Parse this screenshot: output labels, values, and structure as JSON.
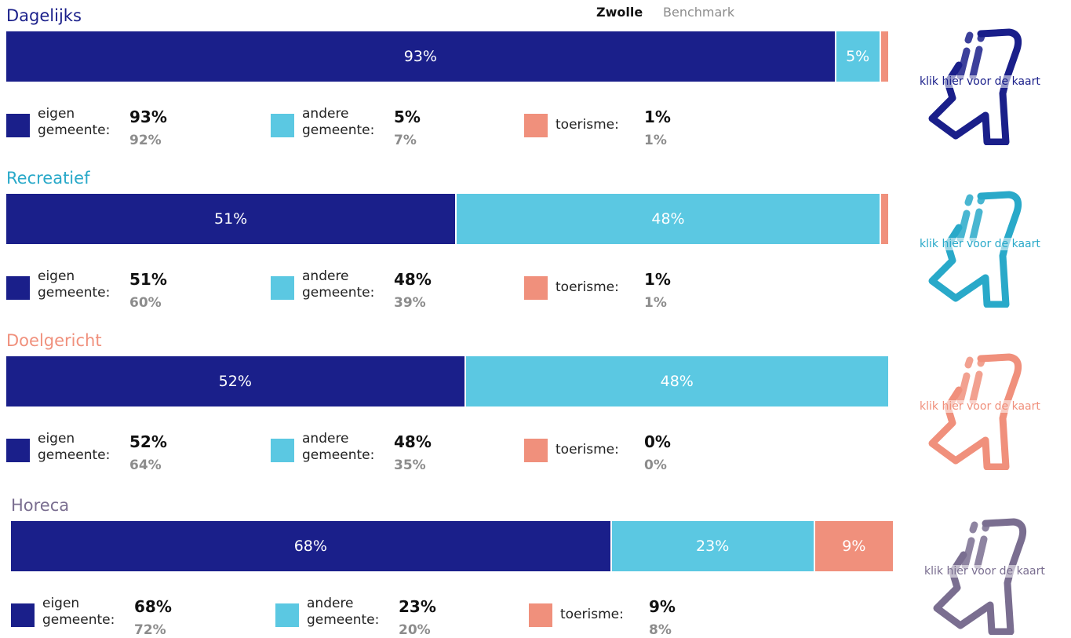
{
  "header": {
    "series_labels": [
      "Zwolle",
      "Benchmark"
    ]
  },
  "chart_data": [
    {
      "type": "stacked-bar",
      "title": "Dagelijks",
      "title_color": "#1a1f8a",
      "link": "klik hier voor de kaart",
      "series": [
        {
          "name": "eigen gemeente:",
          "color": "#1a1f8a",
          "values": [
            93,
            92
          ],
          "value_labels": [
            "93%",
            "92%"
          ]
        },
        {
          "name": "andere gemeente:",
          "color": "#5bc8e2",
          "values": [
            5,
            7
          ],
          "value_labels": [
            "5%",
            "7%"
          ]
        },
        {
          "name": "toerisme:",
          "color": "#f0907c",
          "values": [
            1,
            1
          ],
          "value_labels": [
            "1%",
            "1%"
          ]
        }
      ]
    },
    {
      "type": "stacked-bar",
      "title": "Recreatief",
      "title_color": "#29a9c9",
      "link": "klik hier voor de kaart",
      "series": [
        {
          "name": "eigen gemeente:",
          "color": "#1a1f8a",
          "values": [
            51,
            60
          ],
          "value_labels": [
            "51%",
            "60%"
          ]
        },
        {
          "name": "andere gemeente:",
          "color": "#5bc8e2",
          "values": [
            48,
            39
          ],
          "value_labels": [
            "48%",
            "39%"
          ]
        },
        {
          "name": "toerisme:",
          "color": "#f0907c",
          "values": [
            1,
            1
          ],
          "value_labels": [
            "1%",
            "1%"
          ]
        }
      ]
    },
    {
      "type": "stacked-bar",
      "title": "Doelgericht",
      "title_color": "#f0907c",
      "link": "klik hier voor de kaart",
      "series": [
        {
          "name": "eigen gemeente:",
          "color": "#1a1f8a",
          "values": [
            52,
            64
          ],
          "value_labels": [
            "52%",
            "64%"
          ]
        },
        {
          "name": "andere gemeente:",
          "color": "#5bc8e2",
          "values": [
            48,
            35
          ],
          "value_labels": [
            "48%",
            "35%"
          ]
        },
        {
          "name": "toerisme:",
          "color": "#f0907c",
          "values": [
            0,
            0
          ],
          "value_labels": [
            "0%",
            "0%"
          ]
        }
      ]
    },
    {
      "type": "stacked-bar",
      "title": "Horeca",
      "title_color": "#7a6e90",
      "link": "klik hier voor de kaart",
      "series": [
        {
          "name": "eigen gemeente:",
          "color": "#1a1f8a",
          "values": [
            68,
            72
          ],
          "value_labels": [
            "68%",
            "72%"
          ]
        },
        {
          "name": "andere gemeente:",
          "color": "#5bc8e2",
          "values": [
            23,
            20
          ],
          "value_labels": [
            "23%",
            "20%"
          ]
        },
        {
          "name": "toerisme:",
          "color": "#f0907c",
          "values": [
            9,
            8
          ],
          "value_labels": [
            "9%",
            "8%"
          ]
        }
      ]
    }
  ]
}
